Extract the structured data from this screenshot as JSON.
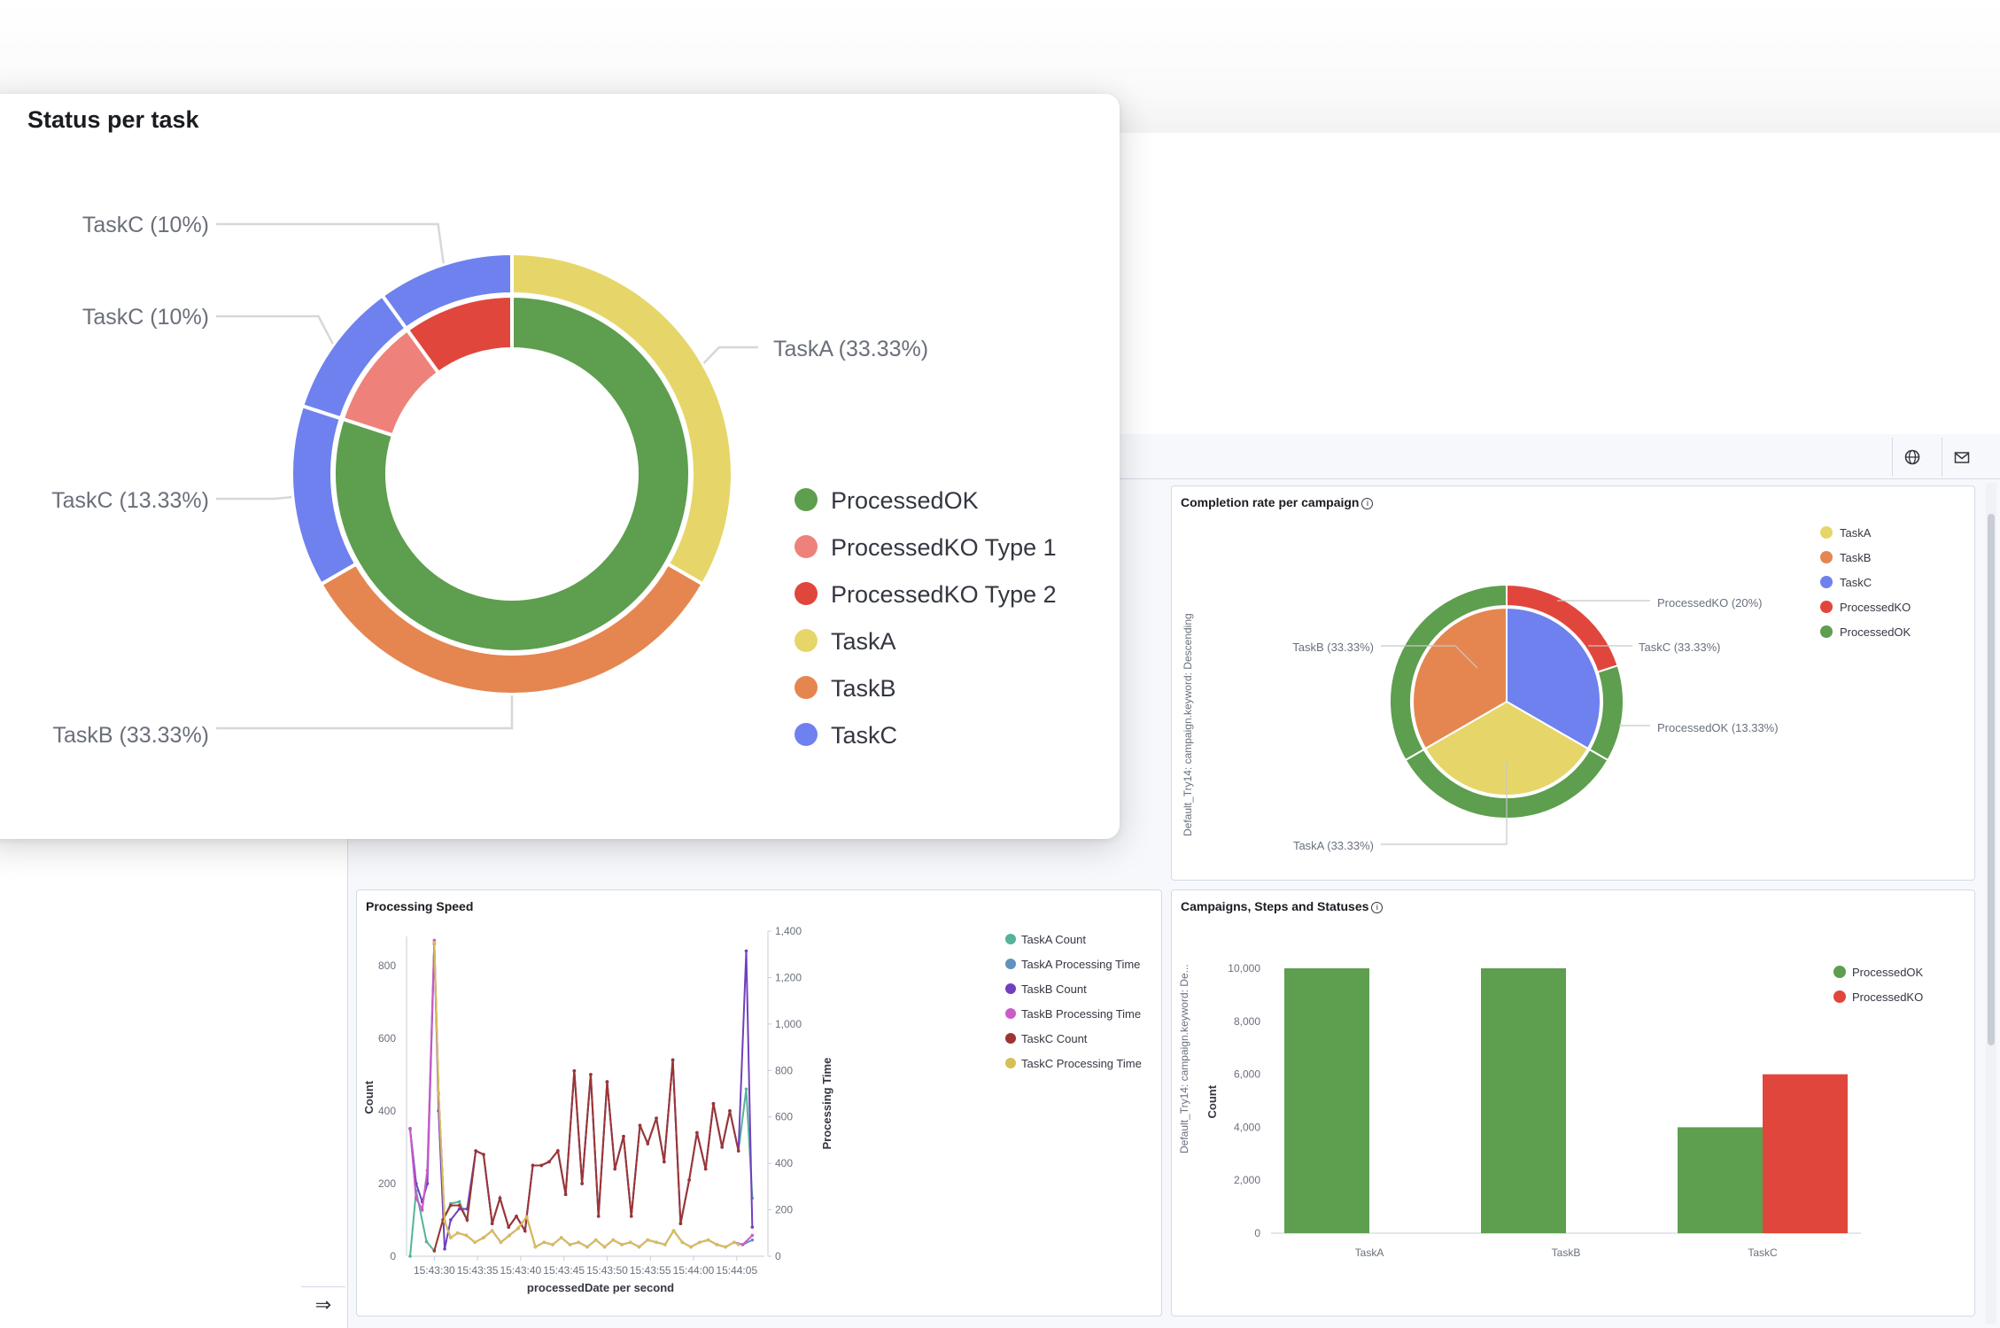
{
  "popup": {
    "title": "Status per task",
    "legend": [
      {
        "label": "ProcessedOK",
        "color": "#5e9e4f"
      },
      {
        "label": "ProcessedKO Type 1",
        "color": "#ee827b"
      },
      {
        "label": "ProcessedKO Type 2",
        "color": "#e1463c"
      },
      {
        "label": "TaskA",
        "color": "#e6d66a"
      },
      {
        "label": "TaskB",
        "color": "#e58650"
      },
      {
        "label": "TaskC",
        "color": "#6f81ee"
      }
    ]
  },
  "panels": {
    "completion": {
      "title": "Completion rate per campaign",
      "axis_label": "Default_Try14: campaign.keyword: Descending"
    },
    "speed": {
      "title": "Processing Speed"
    },
    "campaigns": {
      "title": "Campaigns, Steps and Statuses"
    }
  },
  "toolbar": {
    "icons": [
      "globe-icon",
      "mail-icon"
    ]
  },
  "colors": {
    "ok": "#5e9e4f",
    "ko": "#e1463c",
    "taskA": "#e6d66a",
    "taskB": "#e58650",
    "taskC": "#6f81ee",
    "ko1": "#ee827b"
  },
  "chart_data": [
    {
      "type": "pie",
      "title": "Status per task",
      "inner_ring": [
        {
          "label": "ProcessedOK",
          "value": 80
        },
        {
          "label": "ProcessedKO Type 1",
          "value": 10
        },
        {
          "label": "ProcessedKO Type 2",
          "value": 10
        }
      ],
      "outer_ring": [
        {
          "label": "TaskA",
          "value": 33.33,
          "text": "TaskA (33.33%)"
        },
        {
          "label": "TaskB",
          "value": 33.33,
          "text": "TaskB (33.33%)"
        },
        {
          "label": "TaskC",
          "value": 13.33,
          "text": "TaskC (13.33%)"
        },
        {
          "label": "TaskC",
          "value": 10,
          "text": "TaskC (10%)"
        },
        {
          "label": "TaskC",
          "value": 10,
          "text": "TaskC (10%)"
        }
      ]
    },
    {
      "type": "pie",
      "title": "Completion rate per campaign",
      "legend": [
        "TaskA",
        "TaskB",
        "TaskC",
        "ProcessedKO",
        "ProcessedOK"
      ],
      "inner_ring": [
        {
          "label": "TaskC",
          "value": 33.33,
          "text": "TaskC (33.33%)"
        },
        {
          "label": "TaskA",
          "value": 33.33,
          "text": "TaskA (33.33%)"
        },
        {
          "label": "TaskB",
          "value": 33.33,
          "text": "TaskB (33.33%)"
        }
      ],
      "outer_ring": [
        {
          "parent": "TaskC",
          "label": "ProcessedKO",
          "value": 20,
          "text": "ProcessedKO (20%)"
        },
        {
          "parent": "TaskC",
          "label": "ProcessedOK",
          "value": 13.33,
          "text": "ProcessedOK (13.33%)"
        },
        {
          "parent": "TaskA",
          "label": "ProcessedOK",
          "value": 33.33
        },
        {
          "parent": "TaskB",
          "label": "ProcessedOK",
          "value": 33.33
        }
      ]
    },
    {
      "type": "line",
      "title": "Processing Speed",
      "xlabel": "processedDate per second",
      "ylabel": "Count",
      "y2label": "Processing Time",
      "ylim": [
        0,
        880
      ],
      "y2lim": [
        0,
        1400
      ],
      "yticks": [
        "0",
        "200",
        "400",
        "600",
        "800"
      ],
      "y2ticks": [
        "0",
        "200",
        "400",
        "600",
        "800",
        "1,000",
        "1,200",
        "1,400"
      ],
      "xticks": [
        "15:43:30",
        "15:43:35",
        "15:43:40",
        "15:43:45",
        "15:43:50",
        "15:43:55",
        "15:44:00",
        "15:44:05"
      ],
      "xtick_pos": [
        2.8,
        7.8,
        12.8,
        17.8,
        22.8,
        27.8,
        32.8,
        37.8
      ],
      "x_range": [
        0,
        41
      ],
      "series": [
        {
          "name": "TaskA Count",
          "axis": "left",
          "color": "#54b399",
          "x": [
            0,
            0.7,
            1.9,
            2.8,
            3.8,
            4.7,
            5.7,
            6.6,
            7.6,
            8.5,
            9.5,
            10.4,
            11.4,
            12.3,
            13.3,
            14.2,
            15.2,
            16.1,
            17.1,
            18.0,
            19.0,
            19.9,
            20.9,
            21.8,
            22.8,
            23.7,
            24.7,
            25.6,
            26.6,
            27.5,
            28.5,
            29.4,
            30.4,
            31.3,
            32.3,
            33.2,
            34.2,
            35.1,
            36.1,
            37.0,
            38.0,
            38.9,
            39.6
          ],
          "y": [
            0,
            180,
            40,
            15,
            100,
            145,
            150,
            100,
            290,
            280,
            90,
            160,
            80,
            110,
            70,
            250,
            250,
            260,
            290,
            170,
            510,
            200,
            500,
            110,
            480,
            240,
            330,
            110,
            360,
            310,
            380,
            260,
            540,
            90,
            210,
            340,
            240,
            420,
            300,
            400,
            290,
            460,
            160
          ]
        },
        {
          "name": "TaskA Processing Time",
          "axis": "right",
          "color": "#6092c0",
          "x": [
            0,
            0.7,
            1.4,
            2.0,
            2.8,
            3.3,
            4.0,
            4.7,
            5.5,
            6.5,
            7.5,
            8.5,
            9.5,
            10.5,
            11.5,
            12.5,
            13.5,
            14.5,
            15.5,
            16.5,
            17.5,
            18.5,
            19.5,
            20.5,
            21.5,
            22.5,
            23.5,
            24.5,
            25.5,
            26.5,
            27.5,
            28.5,
            29.5,
            30.5,
            31.5,
            32.5,
            33.5,
            34.5,
            35.5,
            36.5,
            37.5,
            38.5,
            39.6
          ],
          "y": [
            550,
            250,
            200,
            370,
            1350,
            700,
            150,
            80,
            100,
            90,
            60,
            80,
            110,
            60,
            90,
            120,
            170,
            40,
            60,
            50,
            80,
            50,
            60,
            40,
            70,
            40,
            70,
            50,
            60,
            40,
            70,
            60,
            50,
            110,
            60,
            40,
            60,
            70,
            50,
            40,
            60,
            50,
            70
          ]
        },
        {
          "name": "TaskB Count",
          "axis": "left",
          "color": "#7040c0",
          "x": [
            0,
            0.7,
            1.4,
            2.0,
            2.8,
            3.3,
            4.0,
            4.7,
            5.7,
            6.6,
            7.6,
            8.5,
            9.5,
            10.4,
            11.4,
            12.3,
            13.3,
            14.2,
            15.2,
            16.1,
            17.1,
            18.0,
            19.0,
            19.9,
            20.9,
            21.8,
            22.8,
            23.7,
            24.7,
            25.6,
            26.6,
            27.5,
            28.5,
            29.4,
            30.4,
            31.3,
            32.3,
            33.2,
            34.2,
            35.1,
            36.1,
            37.0,
            38.0,
            38.9,
            39.6
          ],
          "y": [
            350,
            200,
            150,
            200,
            860,
            400,
            20,
            100,
            130,
            130,
            290,
            280,
            90,
            160,
            80,
            110,
            70,
            250,
            250,
            260,
            290,
            170,
            510,
            200,
            500,
            110,
            480,
            240,
            330,
            110,
            360,
            310,
            380,
            260,
            540,
            90,
            210,
            340,
            240,
            420,
            300,
            400,
            290,
            840,
            80
          ]
        },
        {
          "name": "TaskB Processing Time",
          "axis": "right",
          "color": "#ca5bc8",
          "x": [
            0,
            0.7,
            1.4,
            2.0,
            2.8,
            3.3,
            4.0,
            4.7,
            5.5,
            6.5,
            7.5,
            8.5,
            9.5,
            10.5,
            11.5,
            12.5,
            13.5,
            14.5,
            15.5,
            16.5,
            17.5,
            18.5,
            19.5,
            20.5,
            21.5,
            22.5,
            23.5,
            24.5,
            25.5,
            26.5,
            27.5,
            28.5,
            29.5,
            30.5,
            31.5,
            32.5,
            33.5,
            34.5,
            35.5,
            36.5,
            37.5,
            38.5,
            39.6
          ],
          "y": [
            550,
            250,
            200,
            370,
            1360,
            700,
            150,
            80,
            100,
            90,
            60,
            80,
            110,
            60,
            90,
            120,
            170,
            40,
            60,
            50,
            80,
            50,
            60,
            40,
            70,
            40,
            70,
            50,
            60,
            40,
            70,
            60,
            50,
            110,
            60,
            40,
            60,
            70,
            50,
            40,
            60,
            50,
            90
          ]
        },
        {
          "name": "TaskC Count",
          "axis": "left",
          "color": "#9e3533",
          "x": [
            2.8,
            3.8,
            4.7,
            5.7,
            6.6,
            7.6,
            8.5,
            9.5,
            10.4,
            11.4,
            12.3,
            13.3,
            14.2,
            15.2,
            16.1,
            17.1,
            18.0,
            19.0,
            19.9,
            20.9,
            21.8,
            22.8,
            23.7,
            24.7,
            25.6,
            26.6,
            27.5,
            28.5,
            29.4,
            30.4,
            31.3,
            32.3,
            33.2,
            34.2,
            35.1,
            36.1,
            37.0,
            38.0
          ],
          "y": [
            15,
            100,
            140,
            140,
            100,
            290,
            280,
            90,
            160,
            80,
            110,
            70,
            250,
            250,
            260,
            290,
            170,
            510,
            200,
            500,
            110,
            480,
            240,
            330,
            110,
            360,
            310,
            380,
            260,
            540,
            90,
            210,
            340,
            240,
            420,
            300,
            400,
            290
          ]
        },
        {
          "name": "TaskC Processing Time",
          "axis": "right",
          "color": "#d6bf57",
          "x": [
            2.8,
            3.3,
            4.0,
            4.7,
            5.5,
            6.5,
            7.5,
            8.5,
            9.5,
            10.5,
            11.5,
            12.5,
            13.5,
            14.5,
            15.5,
            16.5,
            17.5,
            18.5,
            19.5,
            20.5,
            21.5,
            22.5,
            23.5,
            24.5,
            25.5,
            26.5,
            27.5,
            28.5,
            29.5,
            30.5,
            31.5,
            32.5,
            33.5,
            34.5,
            35.5,
            36.5,
            37.5,
            38.0
          ],
          "y": [
            1350,
            700,
            150,
            80,
            100,
            90,
            60,
            80,
            110,
            60,
            90,
            120,
            170,
            40,
            60,
            50,
            80,
            50,
            60,
            40,
            70,
            40,
            70,
            50,
            60,
            40,
            70,
            60,
            50,
            110,
            60,
            40,
            60,
            70,
            50,
            40,
            60,
            50
          ]
        }
      ]
    },
    {
      "type": "bar",
      "title": "Campaigns, Steps and Statuses",
      "xlabel": "Default_Try14: campaign.keyword: De...",
      "ylabel": "Count",
      "categories": [
        "TaskA",
        "TaskB",
        "TaskC"
      ],
      "ylim": [
        0,
        10000
      ],
      "yticks": [
        "0",
        "2,000",
        "4,000",
        "6,000",
        "8,000",
        "10,000"
      ],
      "series": [
        {
          "name": "ProcessedOK",
          "values": [
            10000,
            10000,
            4000
          ]
        },
        {
          "name": "ProcessedKO",
          "values": [
            0,
            0,
            6000
          ]
        }
      ]
    }
  ]
}
